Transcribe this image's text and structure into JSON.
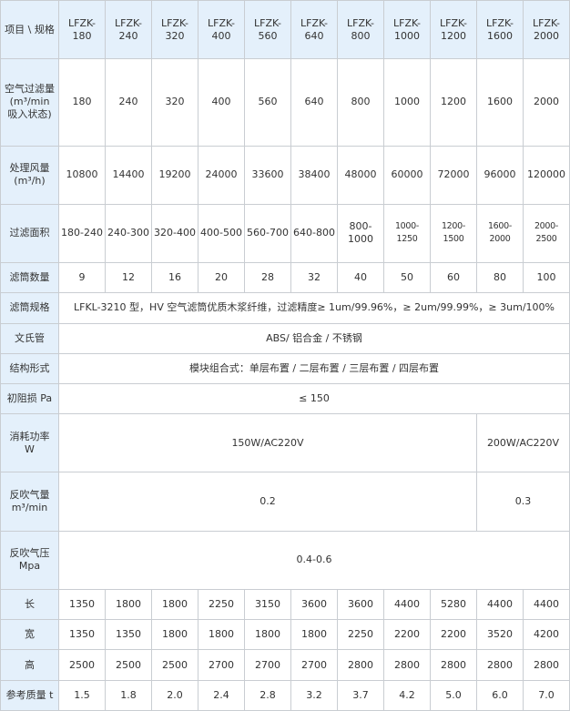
{
  "header": {
    "corner": "项目 \\ 规格",
    "models": [
      "LFZK-\n180",
      "LFZK-\n240",
      "LFZK-\n320",
      "LFZK-\n400",
      "LFZK-\n560",
      "LFZK-\n640",
      "LFZK-\n800",
      "LFZK-\n1000",
      "LFZK-\n1200",
      "LFZK-\n1600",
      "LFZK-\n2000"
    ]
  },
  "rows": [
    {
      "label": "空气过滤量\n(m³/min\n吸入状态)",
      "cells": [
        {
          "v": "180"
        },
        {
          "v": "240"
        },
        {
          "v": "320"
        },
        {
          "v": "400"
        },
        {
          "v": "560"
        },
        {
          "v": "640"
        },
        {
          "v": "800"
        },
        {
          "v": "1000"
        },
        {
          "v": "1200"
        },
        {
          "v": "1600"
        },
        {
          "v": "2000"
        }
      ]
    },
    {
      "label": "处理风量\n(m³/h)",
      "cells": [
        {
          "v": "10800"
        },
        {
          "v": "14400"
        },
        {
          "v": "19200"
        },
        {
          "v": "24000"
        },
        {
          "v": "33600"
        },
        {
          "v": "38400"
        },
        {
          "v": "48000"
        },
        {
          "v": "60000"
        },
        {
          "v": "72000"
        },
        {
          "v": "96000"
        },
        {
          "v": "120000"
        }
      ]
    },
    {
      "label": "过滤面积",
      "cells": [
        {
          "v": "180-240"
        },
        {
          "v": "240-300"
        },
        {
          "v": "320-400"
        },
        {
          "v": "400-500"
        },
        {
          "v": "560-700"
        },
        {
          "v": "640-800"
        },
        {
          "v": "800-1000"
        },
        {
          "v": "1000-1250",
          "small": true
        },
        {
          "v": "1200-1500",
          "small": true
        },
        {
          "v": "1600-2000",
          "small": true
        },
        {
          "v": "2000-2500",
          "small": true
        }
      ]
    },
    {
      "label": "滤筒数量",
      "cells": [
        {
          "v": "9"
        },
        {
          "v": "12"
        },
        {
          "v": "16"
        },
        {
          "v": "20"
        },
        {
          "v": "28"
        },
        {
          "v": "32"
        },
        {
          "v": "40"
        },
        {
          "v": "50"
        },
        {
          "v": "60"
        },
        {
          "v": "80"
        },
        {
          "v": "100"
        }
      ]
    },
    {
      "label": "滤筒规格",
      "cells": [
        {
          "v": "LFKL-3210 型，HV 空气滤筒优质木浆纤维，过滤精度≥ 1um/99.96%，≥ 2um/99.99%，≥ 3um/100%",
          "span": 11
        }
      ]
    },
    {
      "label": "文氏管",
      "cells": [
        {
          "v": "ABS/ 铝合金 / 不锈钢",
          "span": 11
        }
      ]
    },
    {
      "label": "结构形式",
      "cells": [
        {
          "v": "模块组合式：单层布置 / 二层布置 / 三层布置 / 四层布置",
          "span": 11
        }
      ]
    },
    {
      "label": "初阻损 Pa",
      "cells": [
        {
          "v": "≤ 150",
          "span": 11
        }
      ]
    },
    {
      "label": "消耗功率\nW",
      "cells": [
        {
          "v": "150W/AC220V",
          "span": 9
        },
        {
          "v": "200W/AC220V",
          "span": 2
        }
      ]
    },
    {
      "label": "反吹气量\nm³/min",
      "cells": [
        {
          "v": "0.2",
          "span": 9
        },
        {
          "v": "0.3",
          "span": 2
        }
      ]
    },
    {
      "label": "反吹气压\nMpa",
      "cells": [
        {
          "v": "0.4-0.6",
          "span": 11
        }
      ]
    },
    {
      "label": "长",
      "cells": [
        {
          "v": "1350"
        },
        {
          "v": "1800"
        },
        {
          "v": "1800"
        },
        {
          "v": "2250"
        },
        {
          "v": "3150"
        },
        {
          "v": "3600"
        },
        {
          "v": "3600"
        },
        {
          "v": "4400"
        },
        {
          "v": "5280"
        },
        {
          "v": "4400"
        },
        {
          "v": "4400"
        }
      ]
    },
    {
      "label": "宽",
      "cells": [
        {
          "v": "1350"
        },
        {
          "v": "1350"
        },
        {
          "v": "1800"
        },
        {
          "v": "1800"
        },
        {
          "v": "1800"
        },
        {
          "v": "1800"
        },
        {
          "v": "2250"
        },
        {
          "v": "2200"
        },
        {
          "v": "2200"
        },
        {
          "v": "3520"
        },
        {
          "v": "4200"
        }
      ]
    },
    {
      "label": "高",
      "cells": [
        {
          "v": "2500"
        },
        {
          "v": "2500"
        },
        {
          "v": "2500"
        },
        {
          "v": "2700"
        },
        {
          "v": "2700"
        },
        {
          "v": "2700"
        },
        {
          "v": "2800"
        },
        {
          "v": "2800"
        },
        {
          "v": "2800"
        },
        {
          "v": "2800"
        },
        {
          "v": "2800"
        }
      ]
    },
    {
      "label": "参考质量 t",
      "cells": [
        {
          "v": "1.5"
        },
        {
          "v": "1.8"
        },
        {
          "v": "2.0"
        },
        {
          "v": "2.4"
        },
        {
          "v": "2.8"
        },
        {
          "v": "3.2"
        },
        {
          "v": "3.7"
        },
        {
          "v": "4.2"
        },
        {
          "v": "5.0"
        },
        {
          "v": "6.0"
        },
        {
          "v": "7.0"
        }
      ]
    }
  ],
  "colors": {
    "header_bg": "#e4f0fb",
    "border": "#c9cdd2",
    "text": "#333333"
  }
}
